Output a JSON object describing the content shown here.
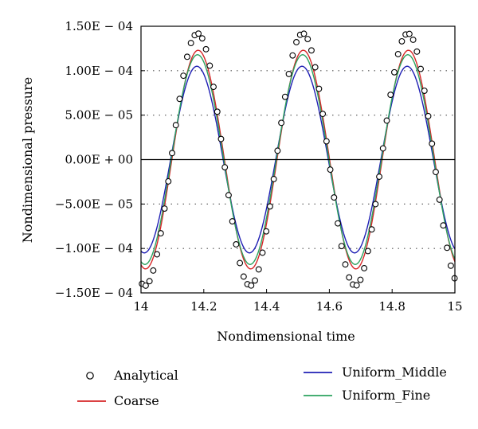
{
  "chart_data": {
    "type": "line",
    "title": "",
    "xlabel": "Nondimensional time",
    "ylabel": "Nondimensional pressure",
    "xlim": [
      14,
      15
    ],
    "ylim": [
      -0.00015,
      0.00015
    ],
    "x_ticks": [
      14,
      14.2,
      14.4,
      14.6,
      14.8,
      15
    ],
    "x_tick_labels": [
      "14",
      "14.2",
      "14.4",
      "14.6",
      "14.8",
      "15"
    ],
    "y_ticks": [
      -0.00015,
      -0.0001,
      -5e-05,
      0,
      5e-05,
      0.0001,
      0.00015
    ],
    "y_tick_labels": [
      "−1.50E − 04",
      "−1.00E − 04",
      "−5.00E − 05",
      "0.00E + 00",
      "5.00E − 05",
      "1.00E − 04",
      "1.50E − 04"
    ],
    "grid": "horizontal dotted",
    "zero_line": true,
    "legend_position": "below plot",
    "series": [
      {
        "name": "Analytical",
        "kind": "markers",
        "marker": "open-circle",
        "color": "#000000",
        "amplitude": 0.000142,
        "period": 0.335,
        "peak_time": 14.18
      },
      {
        "name": "Coarse",
        "kind": "line",
        "color": "#d62728",
        "amplitude": 0.000123,
        "period": 0.335,
        "peak_time": 14.182
      },
      {
        "name": "Uniform_Middle",
        "kind": "line",
        "color": "#1f1fb4",
        "amplitude": 0.000105,
        "period": 0.335,
        "peak_time": 14.178
      },
      {
        "name": "Uniform_Fine",
        "kind": "line",
        "color": "#2ca25f",
        "amplitude": 0.000118,
        "period": 0.335,
        "peak_time": 14.18
      }
    ]
  }
}
